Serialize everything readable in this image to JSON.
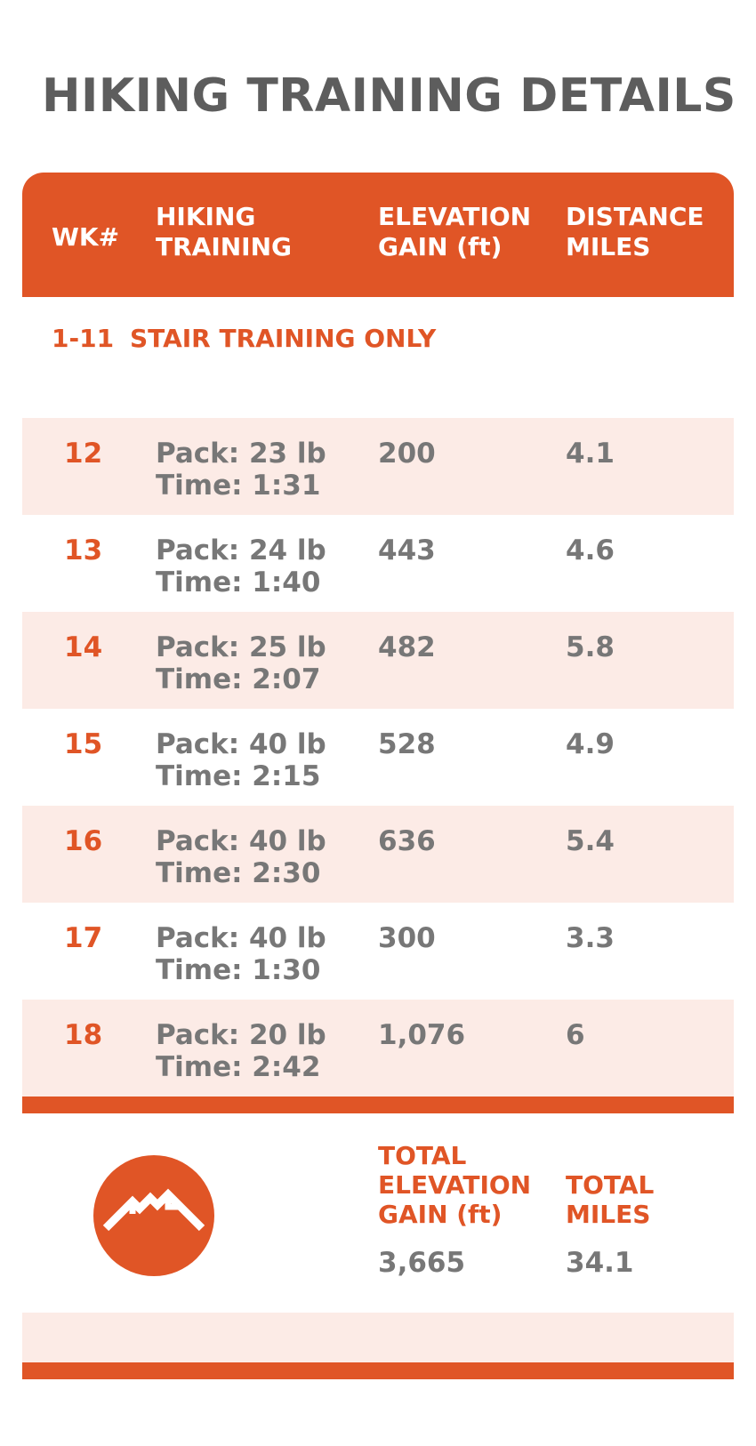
{
  "title": "HIKING TRAINING DETAILS",
  "header": {
    "wk": "WK#",
    "training": "HIKING\nTRAINING",
    "elevation": "ELEVATION\nGAIN (ft)",
    "distance": "DISTANCE\nMILES"
  },
  "stair": {
    "weeks": "1-11",
    "label": "STAIR TRAINING ONLY"
  },
  "rows": [
    {
      "wk": "12",
      "training": "Pack: 23 lb\nTime: 1:31",
      "elevation": "200",
      "distance": "4.1"
    },
    {
      "wk": "13",
      "training": "Pack: 24 lb\nTime: 1:40",
      "elevation": "443",
      "distance": "4.6"
    },
    {
      "wk": "14",
      "training": "Pack: 25 lb\nTime: 2:07",
      "elevation": "482",
      "distance": "5.8"
    },
    {
      "wk": "15",
      "training": "Pack: 40 lb\nTime: 2:15",
      "elevation": "528",
      "distance": "4.9"
    },
    {
      "wk": "16",
      "training": "Pack: 40 lb\nTime: 2:30",
      "elevation": "636",
      "distance": "5.4"
    },
    {
      "wk": "17",
      "training": "Pack: 40 lb\nTime: 1:30",
      "elevation": "300",
      "distance": "3.3"
    },
    {
      "wk": "18",
      "training": "Pack: 20 lb\nTime: 2:42",
      "elevation": "1,076",
      "distance": "6"
    }
  ],
  "totals": {
    "elevation_label": "TOTAL\nELEVATION\nGAIN (ft)",
    "elevation_value": "3,665",
    "miles_label": "TOTAL\nMILES",
    "miles_value": "34.1"
  },
  "logo_icon": "mountain-icon",
  "colors": {
    "accent": "#e05526",
    "text": "#777777",
    "title": "#5d5d5d",
    "shade": "#fcebe6"
  }
}
